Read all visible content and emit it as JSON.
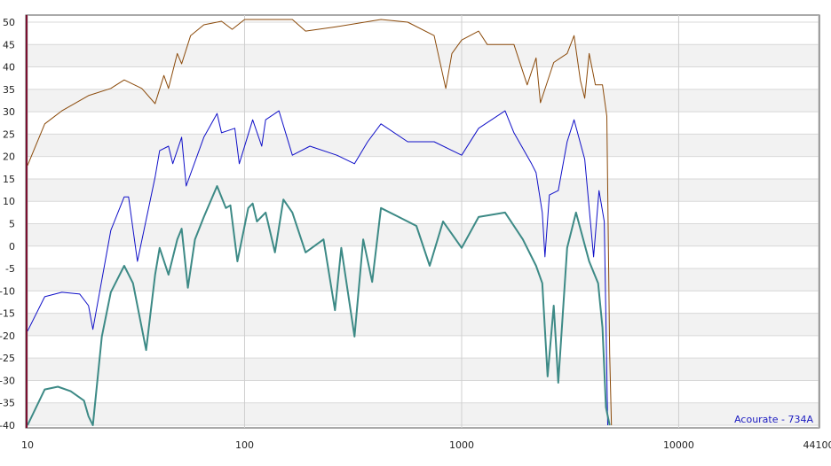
{
  "chart_data": {
    "type": "line",
    "log_x": true,
    "grid": true,
    "xlim": [
      10,
      44100
    ],
    "xticks": [
      10,
      100,
      1000,
      10000,
      44100
    ],
    "ylim": [
      -40,
      50
    ],
    "yticks": [
      -40,
      -35,
      -30,
      -25,
      -20,
      -15,
      -10,
      -5,
      0,
      5,
      10,
      15,
      20,
      25,
      30,
      35,
      40,
      45,
      50
    ],
    "annotation": "Acourate - 734A",
    "series": [
      {
        "color": "#8b4a0a",
        "width": 1,
        "x": [
          10,
          12,
          14.4,
          19.1,
          24.2,
          27.9,
          33.6,
          38.7,
          42.5,
          44.6,
          49,
          51.3,
          56.4,
          64.9,
          78.3,
          87.7,
          100,
          125,
          166,
          191,
          266,
          425,
          564,
          747,
          845,
          902,
          1000,
          1197,
          1313,
          1742,
          2004,
          2203,
          2307,
          2656,
          3062,
          3296,
          3524,
          3690,
          3870,
          4131,
          4456,
          4667,
          4808,
          4900
        ],
        "values": [
          18,
          27.3,
          30.2,
          33.6,
          35.2,
          37.1,
          35.2,
          31.8,
          38.1,
          35.2,
          43,
          40.7,
          47,
          49.4,
          50.2,
          48.4,
          50.6,
          50.6,
          50.6,
          48,
          49,
          50.6,
          50,
          47,
          35.2,
          43,
          46,
          48,
          45,
          45,
          36,
          42,
          32,
          41,
          43,
          47,
          37,
          33,
          43,
          36,
          36,
          29,
          -24,
          -40
        ]
      },
      {
        "color": "#1010c8",
        "width": 1,
        "x": [
          10,
          12,
          14.4,
          17.4,
          19.1,
          20,
          24.2,
          27.9,
          29.2,
          32.1,
          38.7,
          40.6,
          44.6,
          46.7,
          51.3,
          53.8,
          64.9,
          74.7,
          78.3,
          90.2,
          94.5,
          109,
          120,
          125,
          144,
          166,
          200,
          266,
          321,
          369,
          425,
          564,
          747,
          1000,
          1197,
          1585,
          1742,
          2100,
          2203,
          2352,
          2420,
          2536,
          2786,
          3062,
          3296,
          3690,
          4055,
          4295,
          4540,
          4710
        ],
        "values": [
          -19,
          -11.3,
          -10.3,
          -10.7,
          -13.3,
          -18.6,
          3.5,
          11,
          11,
          -3.4,
          15.4,
          21.3,
          22.3,
          18.4,
          24.3,
          13.4,
          24.3,
          29.6,
          25.3,
          26.3,
          18.4,
          28.2,
          22.3,
          28.2,
          30.2,
          20.3,
          22.3,
          20.3,
          18.4,
          23.3,
          27.3,
          23.3,
          23.3,
          20.3,
          26.3,
          30.2,
          25.3,
          18.4,
          16.4,
          7.5,
          -2.4,
          11.4,
          12.4,
          23.3,
          28.2,
          19.4,
          -2.4,
          12.4,
          5.5,
          -40
        ]
      },
      {
        "color": "#3d8a86",
        "width": 2,
        "x": [
          10,
          12,
          13.8,
          15.8,
          18.2,
          19.1,
          20,
          22,
          24.2,
          27.9,
          30.6,
          35.2,
          38.7,
          40.6,
          44.6,
          49,
          51.3,
          54.8,
          59.1,
          64.9,
          74.7,
          82,
          86,
          92.7,
          104,
          109,
          114,
          125,
          138,
          151,
          166,
          191,
          231,
          261,
          279,
          321,
          352,
          387,
          425,
          513,
          619,
          713,
          821,
          1000,
          1197,
          1585,
          1914,
          2203,
          2352,
          2489,
          2656,
          2786,
          3062,
          3365,
          3870,
          4254,
          4456,
          4624,
          4808
        ],
        "values": [
          -40,
          -32,
          -31.4,
          -32.4,
          -34.5,
          -38,
          -40,
          -20.2,
          -10.3,
          -4.4,
          -8.3,
          -23.2,
          -6.4,
          -0.4,
          -6.4,
          1.5,
          3.9,
          -9.3,
          1.5,
          6.5,
          13.4,
          8.5,
          9.1,
          -3.4,
          8.5,
          9.5,
          5.5,
          7.5,
          -1.4,
          10.4,
          7.5,
          -1.4,
          1.5,
          -14.3,
          -0.4,
          -20.2,
          1.5,
          -8,
          8.5,
          6.5,
          4.5,
          -4.4,
          5.5,
          -0.4,
          6.5,
          7.5,
          1.5,
          -4.4,
          -8.3,
          -29.1,
          -13.3,
          -30.5,
          -0.4,
          7.5,
          -3.4,
          -8.3,
          -18.2,
          -36,
          -40
        ]
      }
    ]
  }
}
